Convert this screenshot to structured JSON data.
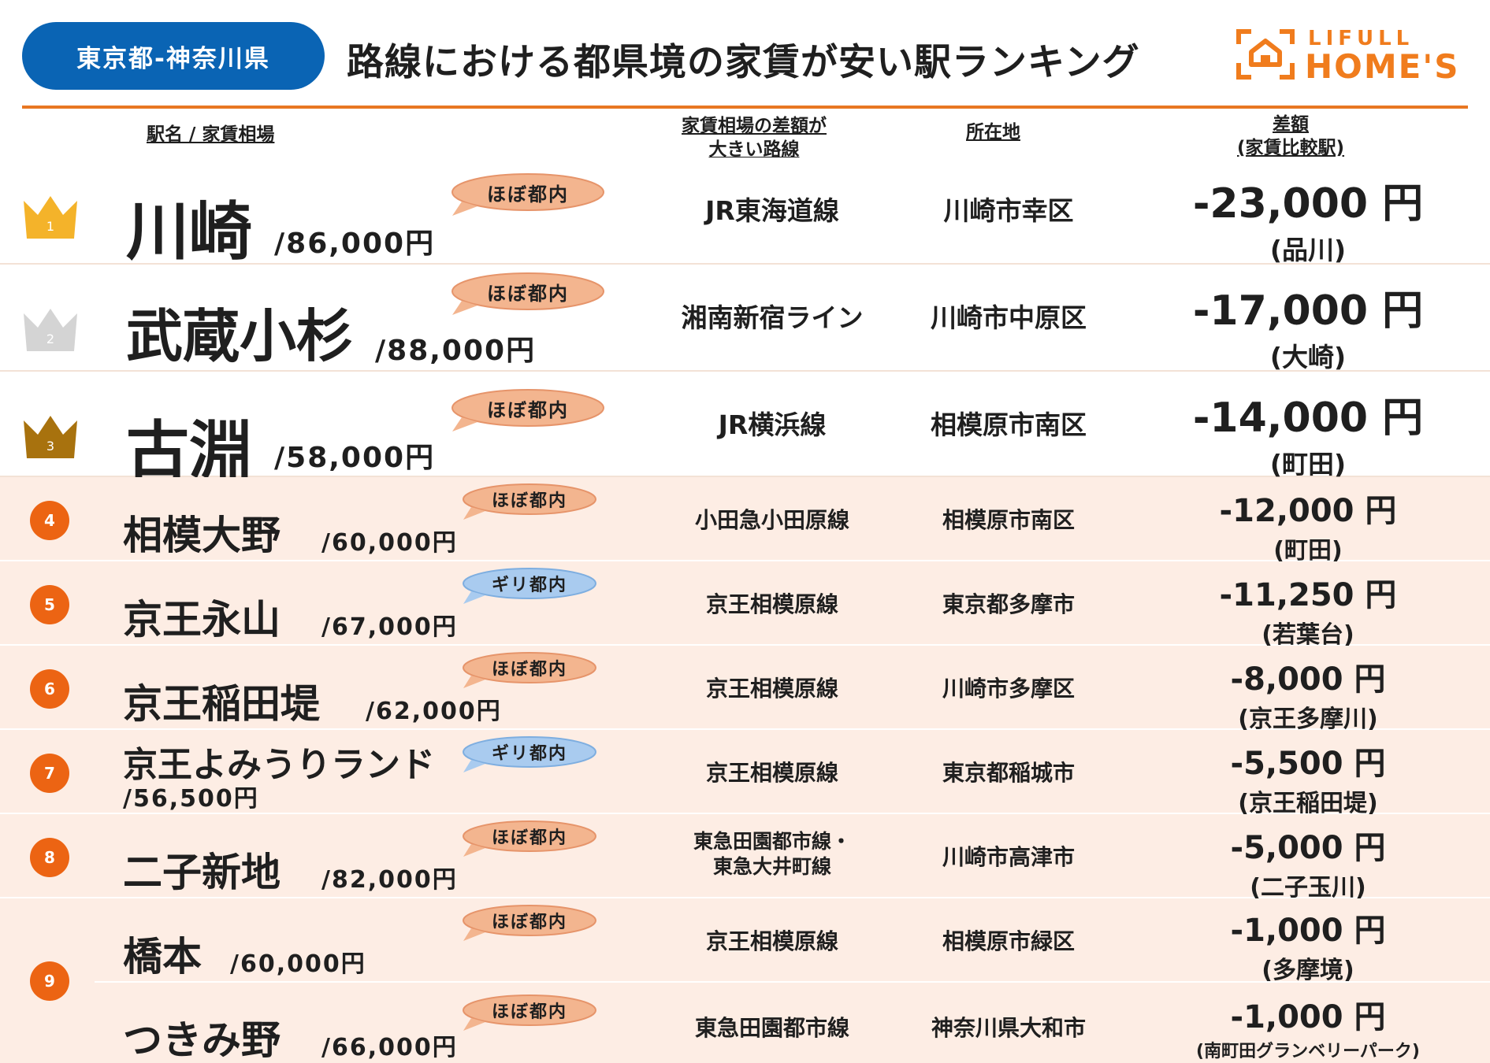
{
  "header": {
    "region": "東京都-神奈川県",
    "title": "路線における都県境の家賃が安い駅ランキング",
    "logo_top": "LIFULL",
    "logo_bottom": "HOME'S"
  },
  "columns": {
    "station": "駅名 / 家賃相場",
    "line_1": "家賃相場の差額が",
    "line_2": "大きい路線",
    "location": "所在地",
    "diff_1": "差額",
    "diff_2": "(家賃比較駅)"
  },
  "rows": [
    {
      "rank": "1",
      "name": "川崎",
      "price": "/86,000円",
      "badge": "ほぼ都内",
      "line": "JR東海道線",
      "location": "川崎市幸区",
      "diff": "-23,000 円",
      "compare": "(品川)"
    },
    {
      "rank": "2",
      "name": "武蔵小杉",
      "price": "/88,000円",
      "badge": "ほぼ都内",
      "line": "湘南新宿ライン",
      "location": "川崎市中原区",
      "diff": "-17,000 円",
      "compare": "(大崎)"
    },
    {
      "rank": "3",
      "name": "古淵",
      "price": "/58,000円",
      "badge": "ほぼ都内",
      "line": "JR横浜線",
      "location": "相模原市南区",
      "diff": "-14,000 円",
      "compare": "(町田)"
    },
    {
      "rank": "4",
      "name": "相模大野",
      "price": "/60,000円",
      "badge": "ほぼ都内",
      "line": "小田急小田原線",
      "location": "相模原市南区",
      "diff": "-12,000 円",
      "compare": "(町田)"
    },
    {
      "rank": "5",
      "name": "京王永山",
      "price": "/67,000円",
      "badge": "ギリ都内",
      "line": "京王相模原線",
      "location": "東京都多摩市",
      "diff": "-11,250 円",
      "compare": "(若葉台)"
    },
    {
      "rank": "6",
      "name": "京王稲田堤",
      "price": "/62,000円",
      "badge": "ほぼ都内",
      "line": "京王相模原線",
      "location": "川崎市多摩区",
      "diff": "-8,000 円",
      "compare": "(京王多摩川)"
    },
    {
      "rank": "7",
      "name": "京王よみうりランド",
      "price": "/56,500円",
      "badge": "ギリ都内",
      "line": "京王相模原線",
      "location": "東京都稲城市",
      "diff": "-5,500 円",
      "compare": "(京王稲田堤)"
    },
    {
      "rank": "8",
      "name": "二子新地",
      "price": "/82,000円",
      "badge": "ほぼ都内",
      "line_1": "東急田園都市線・",
      "line_2": "東急大井町線",
      "location": "川崎市高津市",
      "diff": "-5,000 円",
      "compare": "(二子玉川)"
    },
    {
      "rank": "9",
      "name": "橋本",
      "price": "/60,000円",
      "badge": "ほぼ都内",
      "line": "京王相模原線",
      "location": "相模原市緑区",
      "diff": "-1,000 円",
      "compare": "(多摩境)"
    },
    {
      "rank": "",
      "name": "つきみ野",
      "price": "/66,000円",
      "badge": "ほぼ都内",
      "line": "東急田園都市線",
      "location": "神奈川県大和市",
      "diff": "-1,000 円",
      "compare": "(南町田グランベリーパーク)"
    }
  ],
  "colors": {
    "brand_blue": "#0a64b4",
    "brand_orange": "#e87722",
    "rank_orange": "#ec6413",
    "gold": "#f4b32a",
    "silver": "#d4d4d4",
    "bronze": "#a8720e",
    "badge_peach": "#f3b58f",
    "badge_blue": "#a9cbef",
    "row_pale": "#fdede4"
  }
}
